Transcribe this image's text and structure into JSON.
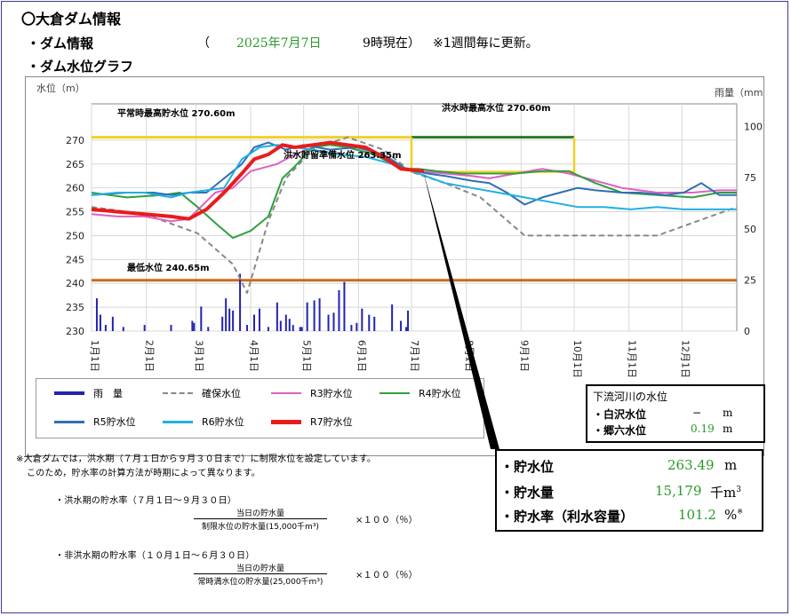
{
  "header": {
    "title": "〇大倉ダム情報",
    "subtitle": "・ダム情報",
    "paren_open": "（",
    "date": "2025年7月7日",
    "time": "9時現在）",
    "update_note": "※1週間毎に更新。",
    "graph_heading": "・ダム水位グラフ"
  },
  "chart_labels": {
    "y_left_label": "水位（m）",
    "y_right_label": "雨量（mm）",
    "normal_max": "平常時最高貯水位 270.60m",
    "flood_max": "洪水時最高水位 270.60m",
    "flood_reserve": "洪水貯留準備水位 263.35m",
    "min_level": "最低水位 240.65m"
  },
  "chart_data": {
    "type": "line",
    "x_ticks": [
      "1月1日",
      "2月1日",
      "3月1日",
      "4月1日",
      "5月1日",
      "6月1日",
      "7月1日",
      "8月1日",
      "9月1日",
      "10月1日",
      "11月1日",
      "12月1日"
    ],
    "ylim": [
      230,
      275
    ],
    "y_ticks": [
      230,
      235,
      240,
      245,
      250,
      255,
      260,
      265,
      270
    ],
    "y2lim": [
      0,
      105
    ],
    "y2_ticks": [
      0,
      25,
      50,
      75,
      100
    ],
    "reference_lines": [
      {
        "name": "平常時最高貯水位",
        "value": 270.6,
        "x_range": [
          0,
          181
        ],
        "color": "#f2d027"
      },
      {
        "name": "洪水時最高水位",
        "value": 270.6,
        "x_range": [
          181,
          273
        ],
        "color": "#2a7a2a"
      },
      {
        "name": "最低水位",
        "value": 240.65,
        "x_range": [
          0,
          365
        ],
        "color": "#cc6a1a"
      }
    ],
    "series": [
      {
        "name": "雨　量",
        "color": "#2323b0",
        "axis": "right",
        "type": "bar",
        "points": [
          [
            3,
            16
          ],
          [
            5,
            8
          ],
          [
            8,
            3
          ],
          [
            12,
            7
          ],
          [
            18,
            2
          ],
          [
            30,
            3
          ],
          [
            45,
            3
          ],
          [
            57,
            5
          ],
          [
            58,
            4
          ],
          [
            62,
            12
          ],
          [
            66,
            2
          ],
          [
            74,
            7
          ],
          [
            76,
            16
          ],
          [
            78,
            11
          ],
          [
            80,
            10
          ],
          [
            84,
            28
          ],
          [
            88,
            3
          ],
          [
            92,
            8
          ],
          [
            95,
            11
          ],
          [
            100,
            2
          ],
          [
            105,
            14
          ],
          [
            107,
            5
          ],
          [
            110,
            8
          ],
          [
            112,
            6
          ],
          [
            114,
            3
          ],
          [
            118,
            2
          ],
          [
            119,
            2
          ],
          [
            122,
            14
          ],
          [
            126,
            15
          ],
          [
            129,
            16
          ],
          [
            134,
            8
          ],
          [
            137,
            9
          ],
          [
            140,
            20
          ],
          [
            143,
            24
          ],
          [
            147,
            3
          ],
          [
            150,
            4
          ],
          [
            153,
            11
          ],
          [
            157,
            8
          ],
          [
            160,
            7
          ],
          [
            170,
            13
          ],
          [
            175,
            5
          ],
          [
            178,
            2
          ],
          [
            179,
            10
          ]
        ]
      },
      {
        "name": "確保水位",
        "color": "#888888",
        "dash": "6,4",
        "points": [
          [
            0,
            256
          ],
          [
            30,
            254.5
          ],
          [
            60,
            250.5
          ],
          [
            80,
            244
          ],
          [
            88,
            238
          ],
          [
            100,
            253
          ],
          [
            110,
            262
          ],
          [
            125,
            268
          ],
          [
            135,
            269.5
          ],
          [
            145,
            270.6
          ],
          [
            165,
            268
          ],
          [
            181,
            263.35
          ],
          [
            200,
            261
          ],
          [
            220,
            258
          ],
          [
            245,
            250
          ],
          [
            273,
            250
          ],
          [
            320,
            250
          ],
          [
            365,
            256
          ]
        ]
      },
      {
        "name": "R3貯水位",
        "color": "#e060c0",
        "points": [
          [
            0,
            254.5
          ],
          [
            15,
            254
          ],
          [
            30,
            254
          ],
          [
            45,
            253
          ],
          [
            55,
            253.5
          ],
          [
            70,
            259
          ],
          [
            80,
            260
          ],
          [
            90,
            263.5
          ],
          [
            105,
            265
          ],
          [
            115,
            267
          ],
          [
            125,
            268.5
          ],
          [
            135,
            269.5
          ],
          [
            145,
            268.5
          ],
          [
            160,
            267
          ],
          [
            175,
            264
          ],
          [
            185,
            263.5
          ],
          [
            200,
            263
          ],
          [
            215,
            262.5
          ],
          [
            225,
            262
          ],
          [
            240,
            263
          ],
          [
            255,
            264
          ],
          [
            270,
            263
          ],
          [
            280,
            262
          ],
          [
            300,
            260
          ],
          [
            320,
            259
          ],
          [
            340,
            259
          ],
          [
            355,
            259.5
          ],
          [
            365,
            259.5
          ]
        ]
      },
      {
        "name": "R4貯水位",
        "color": "#30a040",
        "points": [
          [
            0,
            259
          ],
          [
            20,
            258
          ],
          [
            40,
            258.5
          ],
          [
            50,
            259
          ],
          [
            60,
            256
          ],
          [
            72,
            252
          ],
          [
            80,
            249.5
          ],
          [
            90,
            251
          ],
          [
            100,
            254
          ],
          [
            108,
            262
          ],
          [
            115,
            264.5
          ],
          [
            125,
            268.5
          ],
          [
            135,
            269
          ],
          [
            145,
            268.5
          ],
          [
            160,
            267
          ],
          [
            175,
            264
          ],
          [
            185,
            264
          ],
          [
            195,
            263.5
          ],
          [
            210,
            263
          ],
          [
            225,
            263
          ],
          [
            240,
            263
          ],
          [
            255,
            263.5
          ],
          [
            270,
            263.5
          ],
          [
            285,
            261
          ],
          [
            300,
            259
          ],
          [
            320,
            258.5
          ],
          [
            340,
            258
          ],
          [
            355,
            259
          ],
          [
            365,
            259
          ]
        ]
      },
      {
        "name": "R5貯水位",
        "color": "#2f6fb3",
        "points": [
          [
            0,
            258.5
          ],
          [
            20,
            259
          ],
          [
            35,
            259
          ],
          [
            45,
            258.5
          ],
          [
            55,
            259
          ],
          [
            65,
            259
          ],
          [
            75,
            262
          ],
          [
            85,
            265
          ],
          [
            92,
            268.5
          ],
          [
            100,
            269.5
          ],
          [
            110,
            268
          ],
          [
            120,
            269
          ],
          [
            135,
            268
          ],
          [
            150,
            268.5
          ],
          [
            165,
            267
          ],
          [
            178,
            264
          ],
          [
            190,
            263
          ],
          [
            200,
            262.5
          ],
          [
            215,
            261.5
          ],
          [
            225,
            261
          ],
          [
            235,
            259
          ],
          [
            245,
            256.5
          ],
          [
            255,
            258
          ],
          [
            265,
            259
          ],
          [
            275,
            260
          ],
          [
            285,
            259.5
          ],
          [
            300,
            259
          ],
          [
            310,
            259
          ],
          [
            325,
            258.5
          ],
          [
            335,
            259
          ],
          [
            345,
            261
          ],
          [
            355,
            258.5
          ],
          [
            365,
            258.5
          ]
        ]
      },
      {
        "name": "R6貯水位",
        "color": "#20b0e0",
        "points": [
          [
            0,
            258.5
          ],
          [
            15,
            259
          ],
          [
            30,
            259
          ],
          [
            45,
            258
          ],
          [
            55,
            259
          ],
          [
            65,
            259.5
          ],
          [
            75,
            260
          ],
          [
            85,
            266
          ],
          [
            95,
            268.5
          ],
          [
            105,
            269
          ],
          [
            115,
            268.5
          ],
          [
            125,
            268
          ],
          [
            140,
            267
          ],
          [
            155,
            266.5
          ],
          [
            170,
            265
          ],
          [
            185,
            263
          ],
          [
            200,
            261
          ],
          [
            215,
            260
          ],
          [
            230,
            259
          ],
          [
            245,
            258
          ],
          [
            260,
            257
          ],
          [
            275,
            256
          ],
          [
            290,
            256
          ],
          [
            305,
            255.5
          ],
          [
            320,
            256
          ],
          [
            335,
            255.5
          ],
          [
            350,
            255.5
          ],
          [
            365,
            255.5
          ]
        ]
      },
      {
        "name": "R7貯水位",
        "color": "#e81c1c",
        "width": 4,
        "points": [
          [
            0,
            255.5
          ],
          [
            15,
            255
          ],
          [
            30,
            254.5
          ],
          [
            45,
            254
          ],
          [
            55,
            253.5
          ],
          [
            60,
            254.5
          ],
          [
            65,
            255.5
          ],
          [
            75,
            259
          ],
          [
            85,
            263
          ],
          [
            92,
            266
          ],
          [
            100,
            267
          ],
          [
            108,
            269
          ],
          [
            115,
            268.5
          ],
          [
            125,
            269
          ],
          [
            135,
            269.5
          ],
          [
            145,
            269
          ],
          [
            155,
            268.5
          ],
          [
            165,
            266.5
          ],
          [
            175,
            264
          ],
          [
            188,
            263.49
          ]
        ]
      }
    ]
  },
  "legend": [
    {
      "label": "雨　量",
      "color": "#2323b0",
      "dash": "",
      "width": 4
    },
    {
      "label": "確保水位",
      "color": "#888888",
      "dash": "6,4",
      "width": 2
    },
    {
      "label": "R3貯水位",
      "color": "#e060c0",
      "dash": "",
      "width": 2
    },
    {
      "label": "R4貯水位",
      "color": "#30a040",
      "dash": "",
      "width": 2
    },
    {
      "label": "R5貯水位",
      "color": "#2f6fb3",
      "dash": "",
      "width": 3
    },
    {
      "label": "R6貯水位",
      "color": "#20b0e0",
      "dash": "",
      "width": 3
    },
    {
      "label": "R7貯水位",
      "color": "#e81c1c",
      "dash": "",
      "width": 5
    }
  ],
  "river": {
    "title": "下流河川の水位",
    "rows": [
      {
        "label": "・白沢水位",
        "value": "−",
        "unit": "m"
      },
      {
        "label": "・郷六水位",
        "value": "0.19",
        "unit": "m"
      }
    ]
  },
  "stats": {
    "level_label": "・貯水位",
    "level_value": "263.49",
    "level_unit": "m",
    "volume_label": "・貯水量",
    "volume_value": "15,179",
    "volume_unit": "千m",
    "volume_sup": "3",
    "rate_label": "・貯水率（利水容量）",
    "rate_value": "101.2",
    "rate_unit": "%",
    "rate_sup": "※"
  },
  "notes": {
    "line1": "※大倉ダムでは，洪水期（７月１日から９月３０日まで）に制限水位を設定しています。",
    "line2": "このため，貯水率の計算方法が時期によって異なります。",
    "flood_title": "・洪水期の貯水率（７月１日～９月３０日）",
    "flood_num": "当日の貯水量",
    "flood_den": "制限水位の貯水量(15,000千m³)",
    "times": "×１００（％）",
    "nonflood_title": "・非洪水期の貯水率（１０月１日～６月３０日）",
    "nonflood_num": "当日の貯水量",
    "nonflood_den": "常時満水位の貯水量(25,000千m³)"
  }
}
